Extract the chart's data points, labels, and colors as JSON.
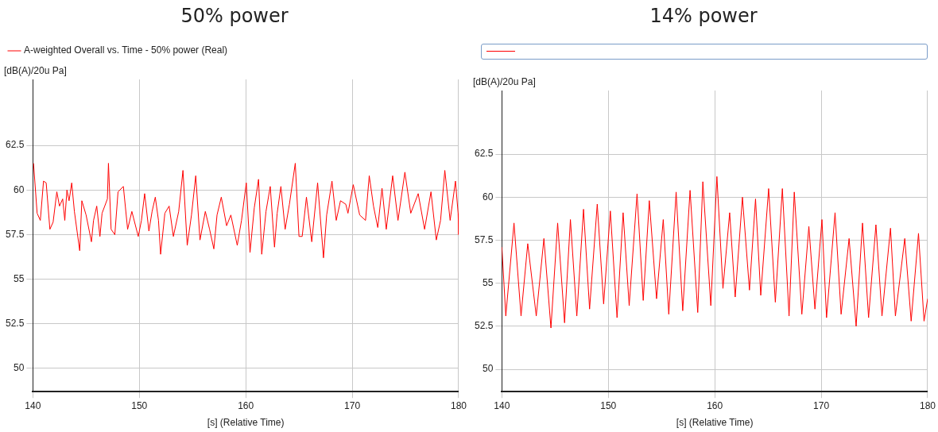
{
  "chart_data": [
    {
      "type": "line",
      "title": "50% power",
      "ylabel": "[dB(A)/20u Pa]",
      "xlabel": "[s] (Relative Time)",
      "xlim": [
        140,
        180
      ],
      "xticks": [
        140,
        150,
        160,
        170,
        180
      ],
      "ylim": [
        48.7,
        66.2
      ],
      "yticks": [
        50,
        52.5,
        55,
        57.5,
        60,
        62.5
      ],
      "grid": true,
      "legend": "top",
      "marker": "none",
      "line_style": "solid",
      "series": [
        {
          "name": "A-weighted Overall vs. Time - 50% power (Real)",
          "color": "#ff0000",
          "x": [
            140.06,
            140.4,
            140.7,
            141.0,
            141.25,
            141.6,
            141.9,
            142.25,
            142.5,
            142.8,
            143.0,
            143.2,
            143.4,
            143.65,
            143.9,
            144.4,
            144.6,
            145.0,
            145.5,
            145.7,
            146.0,
            146.3,
            146.5,
            147.0,
            147.1,
            147.35,
            147.7,
            148.0,
            148.5,
            148.9,
            149.3,
            149.9,
            150.2,
            150.5,
            150.9,
            151.2,
            151.5,
            151.8,
            152.0,
            152.4,
            152.8,
            153.2,
            153.7,
            154.1,
            154.5,
            154.9,
            155.3,
            155.7,
            156.2,
            156.6,
            157.0,
            157.3,
            157.7,
            158.2,
            158.6,
            159.2,
            159.6,
            160.05,
            160.4,
            160.8,
            161.2,
            161.5,
            161.9,
            162.3,
            162.7,
            162.95,
            163.3,
            163.7,
            164.1,
            164.65,
            165.0,
            165.3,
            165.7,
            166.2,
            166.75,
            167.3,
            167.6,
            168.1,
            168.5,
            168.9,
            169.4,
            169.6,
            170.1,
            170.7,
            171.25,
            171.6,
            172.0,
            172.4,
            172.8,
            173.2,
            173.8,
            174.3,
            174.95,
            175.5,
            176.2,
            176.8,
            177.4,
            177.9,
            178.3,
            178.7,
            179.2,
            179.7,
            179.95,
            180
          ],
          "values": [
            61.5,
            58.7,
            58.3,
            60.5,
            60.4,
            57.8,
            58.2,
            59.9,
            59.1,
            59.5,
            58.3,
            60.0,
            59.4,
            60.4,
            58.8,
            56.6,
            59.4,
            58.6,
            57.1,
            58.3,
            59.1,
            57.4,
            58.7,
            59.5,
            61.5,
            57.8,
            57.5,
            59.9,
            60.2,
            57.8,
            58.8,
            57.4,
            58.3,
            59.8,
            57.7,
            58.8,
            59.6,
            58.3,
            56.4,
            58.7,
            59.1,
            57.4,
            58.8,
            61.1,
            56.9,
            58.6,
            60.8,
            57.2,
            58.8,
            57.8,
            56.7,
            58.6,
            59.6,
            58.0,
            58.6,
            56.9,
            58.3,
            60.4,
            56.5,
            59.0,
            60.6,
            56.4,
            58.8,
            60.2,
            56.8,
            58.7,
            60.2,
            57.8,
            59.2,
            61.5,
            57.4,
            57.4,
            59.6,
            57.1,
            60.4,
            56.2,
            58.6,
            60.5,
            58.3,
            59.4,
            59.2,
            58.7,
            60.3,
            58.6,
            58.3,
            60.8,
            59.1,
            57.9,
            60.1,
            57.8,
            60.8,
            58.3,
            61.0,
            58.7,
            59.8,
            57.8,
            59.9,
            57.2,
            58.3,
            61.1,
            58.3,
            60.5,
            58.7,
            57.5
          ]
        }
      ]
    },
    {
      "type": "line",
      "title": "14% power",
      "ylabel": "[dB(A)/20u Pa]",
      "xlabel": "[s] (Relative Time)",
      "xlim": [
        140,
        180
      ],
      "xticks": [
        140,
        150,
        160,
        170,
        180
      ],
      "ylim": [
        48.7,
        66.2
      ],
      "yticks": [
        50,
        52.5,
        55,
        57.5,
        60,
        62.5
      ],
      "grid": true,
      "marker": "none",
      "line_style": "solid",
      "series": [
        {
          "color": "#ff0000",
          "x": [
            140.0,
            140.37,
            141.14,
            141.8,
            142.43,
            143.23,
            143.95,
            144.61,
            145.24,
            145.89,
            146.44,
            147.04,
            147.67,
            148.24,
            148.96,
            149.56,
            150.19,
            150.82,
            151.39,
            151.96,
            152.7,
            153.28,
            153.85,
            154.53,
            155.16,
            155.68,
            156.37,
            156.99,
            157.68,
            158.4,
            158.88,
            159.63,
            160.2,
            160.77,
            161.4,
            161.92,
            162.6,
            163.26,
            163.83,
            164.32,
            165.06,
            165.69,
            166.35,
            166.98,
            167.47,
            168.18,
            168.84,
            169.41,
            170.07,
            170.5,
            171.3,
            171.87,
            172.62,
            173.28,
            173.88,
            174.45,
            175.14,
            175.71,
            176.51,
            176.97,
            177.85,
            178.45,
            179.14,
            179.66,
            180.0
          ],
          "values": [
            57.1,
            53.1,
            58.5,
            53.1,
            57.3,
            53.1,
            57.6,
            52.4,
            58.5,
            52.7,
            58.7,
            53.1,
            59.3,
            53.5,
            59.6,
            53.8,
            59.2,
            53.0,
            59.1,
            53.7,
            60.2,
            54.0,
            59.8,
            54.1,
            58.7,
            53.2,
            60.3,
            53.4,
            60.4,
            53.3,
            60.9,
            53.7,
            61.2,
            54.7,
            59.1,
            54.2,
            60.0,
            54.6,
            59.9,
            54.3,
            60.5,
            53.9,
            60.5,
            53.1,
            60.3,
            53.2,
            58.3,
            53.5,
            58.7,
            53.0,
            59.1,
            53.2,
            57.6,
            52.5,
            58.5,
            53.0,
            58.4,
            53.1,
            58.2,
            53.1,
            57.6,
            52.8,
            57.9,
            52.8,
            54.1
          ]
        }
      ]
    }
  ]
}
